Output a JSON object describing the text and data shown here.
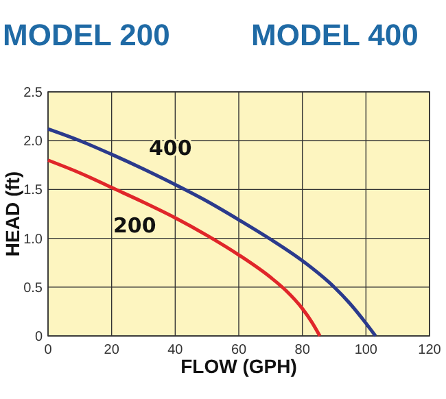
{
  "chart_data": {
    "type": "line",
    "xlabel": "FLOW (GPH)",
    "ylabel": "HEAD (ft)",
    "annotations": [
      "MODEL 200",
      "MODEL 400"
    ],
    "xlim": [
      0,
      120
    ],
    "xticks": [
      0,
      20,
      40,
      60,
      80,
      100,
      120
    ],
    "ylim": [
      0,
      2.5
    ],
    "yticks": [
      0,
      {
        "value": 0.5,
        "label": "0.5"
      },
      {
        "value": 1,
        "label": "1.0"
      },
      {
        "value": 1.5,
        "label": "1.5"
      },
      {
        "value": 2,
        "label": "2.0"
      },
      {
        "value": 2.5,
        "label": "2.5"
      }
    ],
    "grid": true,
    "series": [
      {
        "name": "400",
        "color": "#2b3a8c",
        "x": [
          0,
          10,
          20,
          30,
          40,
          50,
          60,
          70,
          80,
          90,
          95,
          100,
          103
        ],
        "values": [
          2.12,
          2.0,
          1.86,
          1.71,
          1.55,
          1.38,
          1.19,
          0.99,
          0.77,
          0.5,
          0.33,
          0.13,
          0
        ]
      },
      {
        "name": "200",
        "color": "#e0262a",
        "x": [
          0,
          10,
          20,
          30,
          40,
          50,
          60,
          70,
          75,
          80,
          83,
          85.5
        ],
        "values": [
          1.8,
          1.67,
          1.52,
          1.37,
          1.21,
          1.03,
          0.83,
          0.6,
          0.46,
          0.28,
          0.14,
          0
        ]
      }
    ]
  }
}
